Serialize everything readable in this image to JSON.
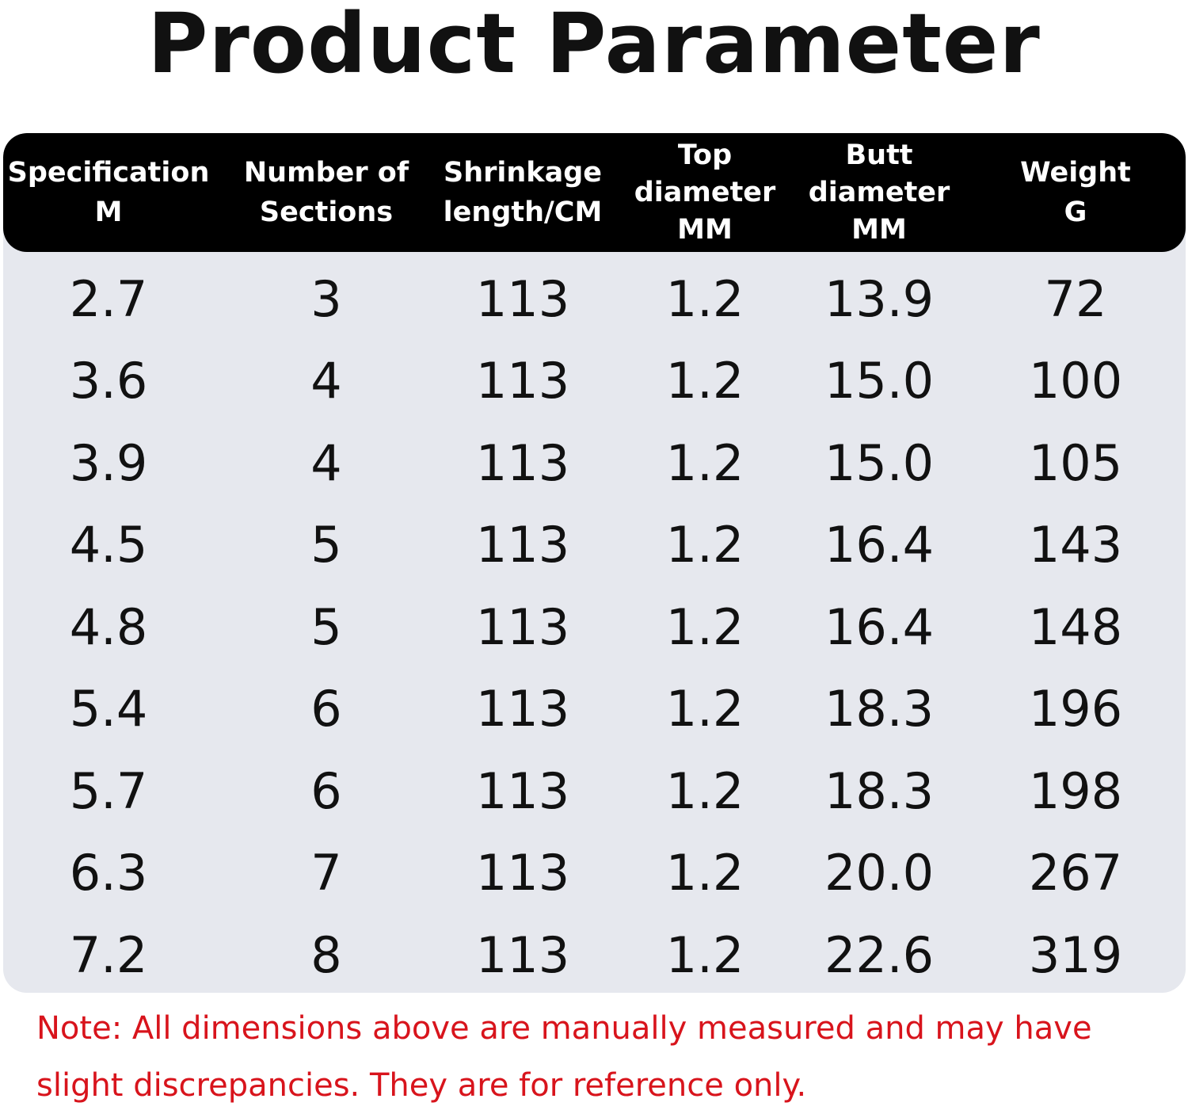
{
  "title": "Product Parameter",
  "table": {
    "headers": [
      [
        "Specification",
        "M"
      ],
      [
        "Number of",
        "Sections"
      ],
      [
        "Shrinkage",
        "length/CM"
      ],
      [
        "Top",
        "diameter",
        "MM"
      ],
      [
        "Butt",
        "diameter",
        "MM"
      ],
      [
        "Weight",
        "G"
      ]
    ],
    "rows": [
      [
        "2.7",
        "3",
        "113",
        "1.2",
        "13.9",
        "72"
      ],
      [
        "3.6",
        "4",
        "113",
        "1.2",
        "15.0",
        "100"
      ],
      [
        "3.9",
        "4",
        "113",
        "1.2",
        "15.0",
        "105"
      ],
      [
        "4.5",
        "5",
        "113",
        "1.2",
        "16.4",
        "143"
      ],
      [
        "4.8",
        "5",
        "113",
        "1.2",
        "16.4",
        "148"
      ],
      [
        "5.4",
        "6",
        "113",
        "1.2",
        "18.3",
        "196"
      ],
      [
        "5.7",
        "6",
        "113",
        "1.2",
        "18.3",
        "198"
      ],
      [
        "6.3",
        "7",
        "113",
        "1.2",
        "20.0",
        "267"
      ],
      [
        "7.2",
        "8",
        "113",
        "1.2",
        "22.6",
        "319"
      ]
    ]
  },
  "note": "Note: All dimensions above are manually measured and may have slight discrepancies. They are for reference only."
}
